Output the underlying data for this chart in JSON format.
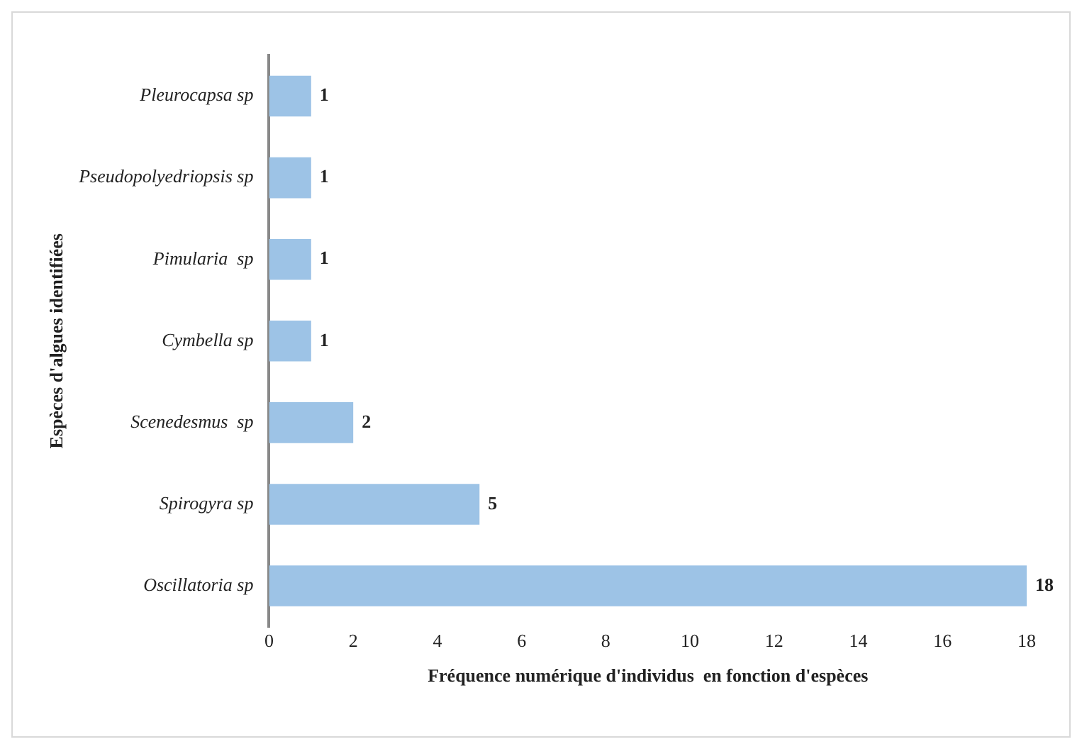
{
  "chart_data": {
    "type": "bar",
    "orientation": "horizontal",
    "categories": [
      "Pleurocapsa sp",
      "Pseudopolyedriopsis sp",
      "Pimularia  sp",
      "Cymbella sp",
      "Scenedesmus  sp",
      "Spirogyra sp",
      "Oscillatoria sp"
    ],
    "values": [
      1,
      1,
      1,
      1,
      2,
      5,
      18
    ],
    "color": "#9dc3e6",
    "xlim": [
      0,
      18
    ],
    "xticks": [
      0,
      2,
      4,
      6,
      8,
      10,
      12,
      14,
      16,
      18
    ],
    "xlabel": "Fréquence numérique d'individus  en fonction d'espèces",
    "ylabel": "Espèces d'algues identifiées",
    "data_labels": true,
    "grid": false
  }
}
